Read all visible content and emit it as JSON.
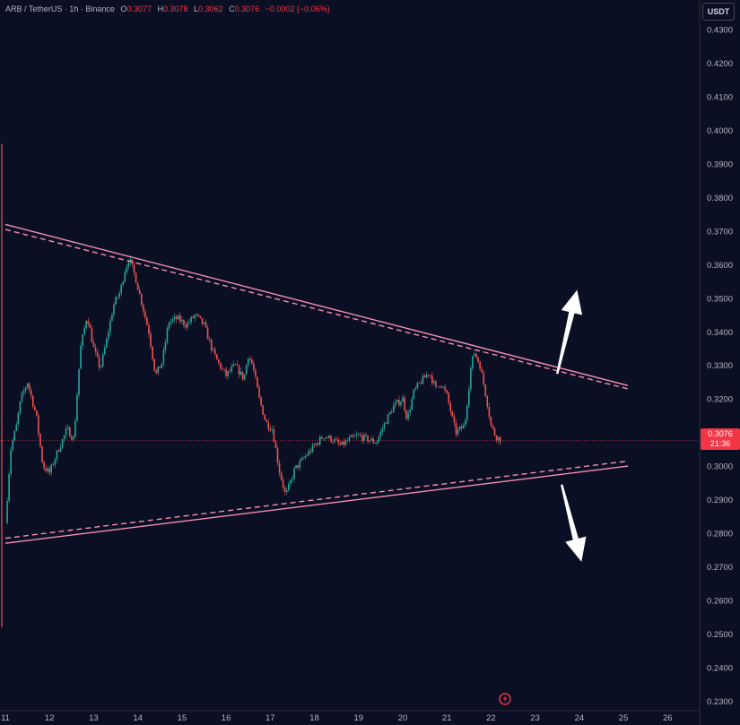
{
  "header": {
    "symbol": "ARB / TetherUS · 1h · Binance",
    "o_label": "O",
    "o": "0.3077",
    "h_label": "H",
    "h": "0.3078",
    "l_label": "L",
    "l": "0.3062",
    "c_label": "C",
    "c": "0.3076",
    "change": "−0.0002 (−0.06%)"
  },
  "currency_button": "USDT",
  "last_price": {
    "price": "0.3076",
    "countdown": "21:36"
  },
  "colors": {
    "background": "#0b0f24",
    "up": "#26a69a",
    "down": "#ef5350",
    "trendline": "#f48fb1",
    "arrow": "#ffffff",
    "axis_text": "#b2b5be",
    "price_tag": "#f23645"
  },
  "chart_data": {
    "type": "candlestick",
    "title": "",
    "xlabel": "",
    "ylabel": "",
    "x_ticks": [
      "11",
      "12",
      "13",
      "14",
      "15",
      "16",
      "17",
      "18",
      "19",
      "20",
      "21",
      "22",
      "23",
      "24",
      "25",
      "26"
    ],
    "y_ticks": [
      "0.4300",
      "0.4200",
      "0.4100",
      "0.4000",
      "0.3900",
      "0.3800",
      "0.3700",
      "0.3600",
      "0.3500",
      "0.3400",
      "0.3300",
      "0.3200",
      "0.3100",
      "0.3000",
      "0.2900",
      "0.2800",
      "0.2700",
      "0.2600",
      "0.2500",
      "0.2400",
      "0.2300"
    ],
    "ylim": [
      0.229,
      0.433
    ],
    "xlim": [
      11.0,
      26.0
    ],
    "grid": false,
    "close_path": [
      [
        11.0,
        0.283
      ],
      [
        11.12,
        0.305
      ],
      [
        11.25,
        0.312
      ],
      [
        11.35,
        0.32
      ],
      [
        11.5,
        0.325
      ],
      [
        11.7,
        0.315
      ],
      [
        11.85,
        0.3
      ],
      [
        12.0,
        0.298
      ],
      [
        12.2,
        0.305
      ],
      [
        12.4,
        0.311
      ],
      [
        12.55,
        0.308
      ],
      [
        12.7,
        0.335
      ],
      [
        12.85,
        0.345
      ],
      [
        13.0,
        0.335
      ],
      [
        13.15,
        0.329
      ],
      [
        13.3,
        0.338
      ],
      [
        13.45,
        0.348
      ],
      [
        13.6,
        0.352
      ],
      [
        13.7,
        0.358
      ],
      [
        13.8,
        0.362
      ],
      [
        13.95,
        0.356
      ],
      [
        14.1,
        0.348
      ],
      [
        14.25,
        0.34
      ],
      [
        14.4,
        0.327
      ],
      [
        14.55,
        0.331
      ],
      [
        14.7,
        0.343
      ],
      [
        14.9,
        0.344
      ],
      [
        15.1,
        0.342
      ],
      [
        15.3,
        0.345
      ],
      [
        15.5,
        0.342
      ],
      [
        15.7,
        0.334
      ],
      [
        15.85,
        0.33
      ],
      [
        16.0,
        0.327
      ],
      [
        16.2,
        0.33
      ],
      [
        16.4,
        0.326
      ],
      [
        16.5,
        0.333
      ],
      [
        16.6,
        0.33
      ],
      [
        16.75,
        0.32
      ],
      [
        16.9,
        0.313
      ],
      [
        17.05,
        0.311
      ],
      [
        17.2,
        0.299
      ],
      [
        17.35,
        0.291
      ],
      [
        17.55,
        0.299
      ],
      [
        17.8,
        0.303
      ],
      [
        18.0,
        0.306
      ],
      [
        18.2,
        0.309
      ],
      [
        18.4,
        0.308
      ],
      [
        18.6,
        0.306
      ],
      [
        18.8,
        0.308
      ],
      [
        19.0,
        0.309
      ],
      [
        19.2,
        0.308
      ],
      [
        19.4,
        0.307
      ],
      [
        19.6,
        0.313
      ],
      [
        19.8,
        0.318
      ],
      [
        20.0,
        0.32
      ],
      [
        20.1,
        0.314
      ],
      [
        20.25,
        0.322
      ],
      [
        20.4,
        0.325
      ],
      [
        20.6,
        0.328
      ],
      [
        20.75,
        0.323
      ],
      [
        20.85,
        0.325
      ],
      [
        21.0,
        0.321
      ],
      [
        21.2,
        0.31
      ],
      [
        21.4,
        0.312
      ],
      [
        21.55,
        0.33
      ],
      [
        21.62,
        0.334
      ],
      [
        21.75,
        0.33
      ],
      [
        21.9,
        0.32
      ],
      [
        22.0,
        0.312
      ],
      [
        22.1,
        0.309
      ],
      [
        22.25,
        0.3076
      ]
    ],
    "annotations": {
      "upper_trendline": {
        "x": [
          11.0,
          25.1
        ],
        "y": [
          0.372,
          0.324
        ]
      },
      "upper_trendline_dashed": {
        "x": [
          11.0,
          25.1
        ],
        "y": [
          0.3705,
          0.323
        ]
      },
      "lower_trendline": {
        "x": [
          11.0,
          25.1
        ],
        "y": [
          0.277,
          0.3
        ]
      },
      "lower_trendline_dashed": {
        "x": [
          11.0,
          25.1
        ],
        "y": [
          0.2785,
          0.3015
        ]
      },
      "last_price_line": 0.3076,
      "arrow_up": {
        "x": [
          23.5,
          23.95
        ],
        "y": [
          0.3275,
          0.3525
        ]
      },
      "arrow_down": {
        "x": [
          23.6,
          24.05
        ],
        "y": [
          0.2945,
          0.2715
        ]
      }
    }
  }
}
